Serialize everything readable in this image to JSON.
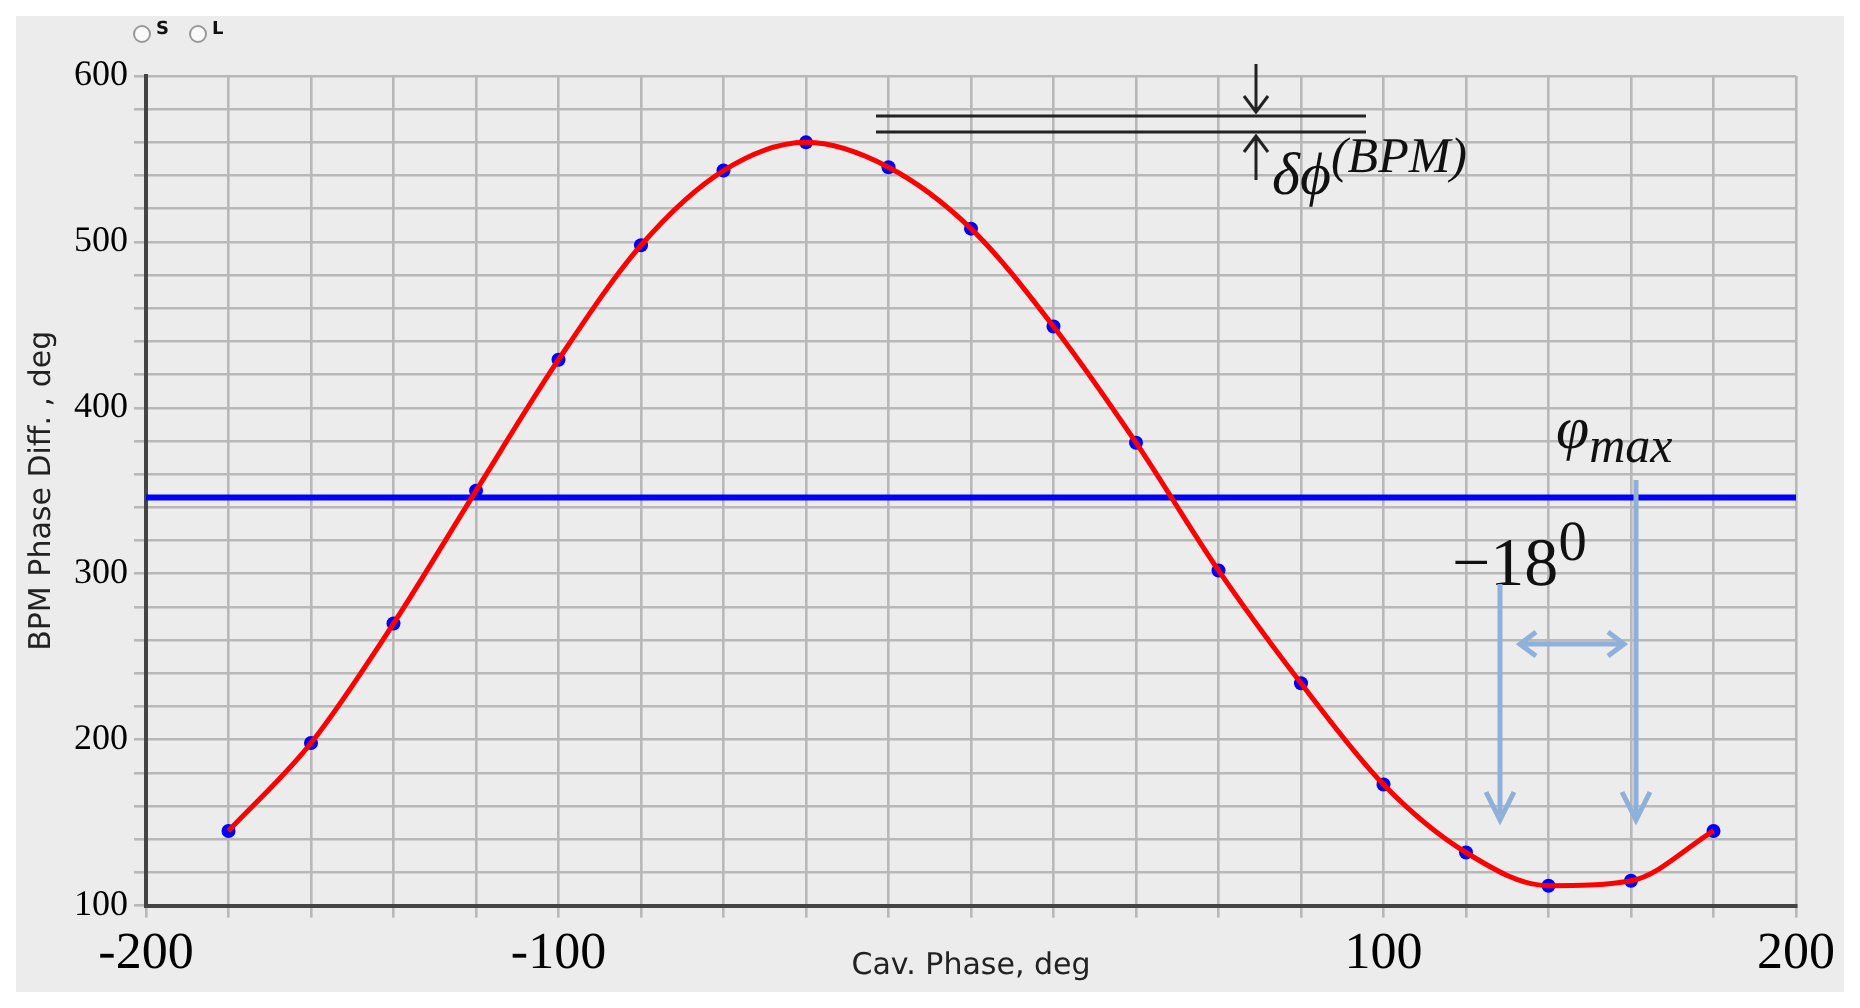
{
  "chart_data": {
    "type": "line",
    "xlabel": "Cav. Phase, deg",
    "ylabel": "BPM Phase Diff. , deg",
    "x": [
      -180,
      -160,
      -140,
      -120,
      -100,
      -80,
      -60,
      -40,
      -20,
      0,
      20,
      40,
      60,
      80,
      100,
      120,
      140,
      160,
      180
    ],
    "series": [
      {
        "color": "#ff0000",
        "marker": "none",
        "values": [
          145,
          198,
          270,
          350,
          429,
          498,
          543,
          560,
          545,
          508,
          449,
          379,
          302,
          234,
          173,
          132,
          112,
          115,
          145
        ]
      },
      {
        "type": "scatter",
        "color": "#0000ff",
        "marker": "circle",
        "values": [
          145,
          198,
          270,
          350,
          429,
          498,
          543,
          560,
          545,
          508,
          449,
          379,
          302,
          234,
          173,
          132,
          112,
          115,
          145
        ]
      }
    ],
    "xlim": [
      -200,
      200
    ],
    "xticks": [
      -200,
      {
        "value": -180,
        "label": null
      },
      {
        "value": -160,
        "label": null
      },
      {
        "value": -140,
        "label": null
      },
      {
        "value": -120,
        "label": null
      },
      -100,
      {
        "value": -80,
        "label": null
      },
      {
        "value": -60,
        "label": null
      },
      {
        "value": -40,
        "label": null
      },
      {
        "value": -20,
        "label": null
      },
      {
        "value": 0,
        "label": null
      },
      {
        "value": 20,
        "label": null
      },
      {
        "value": 40,
        "label": null
      },
      {
        "value": 60,
        "label": null
      },
      {
        "value": 80,
        "label": null
      },
      100,
      {
        "value": 120,
        "label": null
      },
      {
        "value": 140,
        "label": null
      },
      {
        "value": 160,
        "label": null
      },
      {
        "value": 180,
        "label": null
      },
      200
    ],
    "ylim": [
      100,
      600
    ],
    "yticks": [
      100,
      {
        "value": 120,
        "label": null
      },
      {
        "value": 140,
        "label": null
      },
      {
        "value": 160,
        "label": null
      },
      {
        "value": 180,
        "label": null
      },
      200,
      {
        "value": 220,
        "label": null
      },
      {
        "value": 240,
        "label": null
      },
      {
        "value": 260,
        "label": null
      },
      {
        "value": 280,
        "label": null
      },
      300,
      {
        "value": 320,
        "label": null
      },
      {
        "value": 340,
        "label": null
      },
      {
        "value": 360,
        "label": null
      },
      {
        "value": 380,
        "label": null
      },
      400,
      {
        "value": 420,
        "label": null
      },
      {
        "value": 440,
        "label": null
      },
      {
        "value": 460,
        "label": null
      },
      {
        "value": 480,
        "label": null
      },
      500,
      {
        "value": 520,
        "label": null
      },
      {
        "value": 540,
        "label": null
      },
      {
        "value": 560,
        "label": null
      },
      {
        "value": 580,
        "label": null
      },
      600
    ],
    "grid": true,
    "legend": false,
    "ref_lines": [
      {
        "axis": "y",
        "value": 346,
        "color": "#0000ff"
      }
    ],
    "annotations": [
      "δϕ$^{(BPM)}$",
      "φ$_{max}$",
      "−18$^{0}$",
      "S",
      "L"
    ]
  }
}
